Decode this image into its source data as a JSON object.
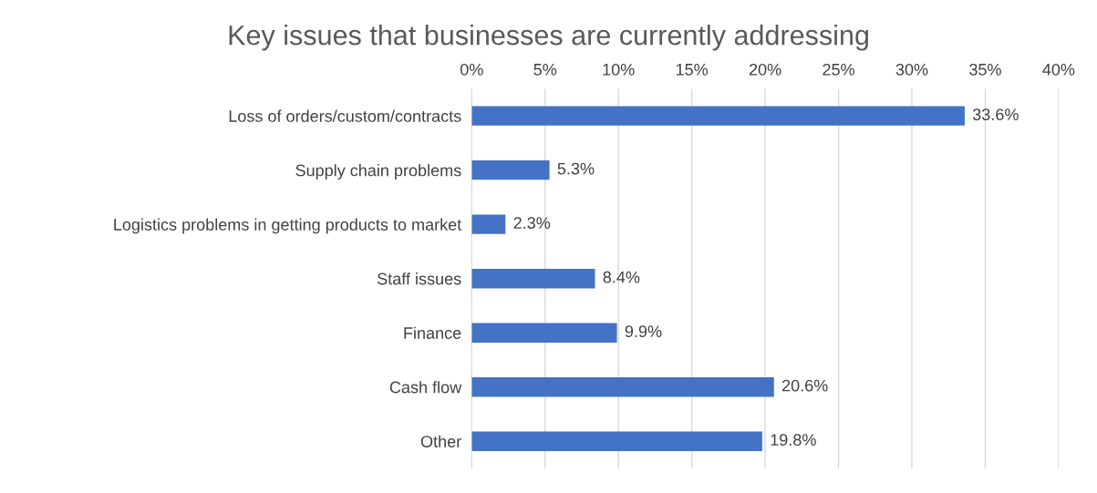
{
  "chart_data": {
    "type": "bar",
    "orientation": "horizontal",
    "title": "Key issues that businesses are currently addressing",
    "categories": [
      "Loss of orders/custom/contracts",
      "Supply chain problems",
      "Logistics problems in getting products to market",
      "Staff issues",
      "Finance",
      "Cash flow",
      "Other"
    ],
    "values": [
      33.6,
      5.3,
      2.3,
      8.4,
      9.9,
      20.6,
      19.8
    ],
    "value_labels": [
      "33.6%",
      "5.3%",
      "2.3%",
      "8.4%",
      "9.9%",
      "20.6%",
      "19.8%"
    ],
    "color": "#4472c4",
    "xlim": [
      0,
      40
    ],
    "xticks": [
      {
        "value": 0,
        "label": "0%"
      },
      {
        "value": 5,
        "label": "5%"
      },
      {
        "value": 10,
        "label": "10%"
      },
      {
        "value": 15,
        "label": "15%"
      },
      {
        "value": 20,
        "label": "20%"
      },
      {
        "value": 25,
        "label": "25%"
      },
      {
        "value": 30,
        "label": "30%"
      },
      {
        "value": 35,
        "label": "35%"
      },
      {
        "value": 40,
        "label": "40%"
      }
    ],
    "grid": "x"
  }
}
